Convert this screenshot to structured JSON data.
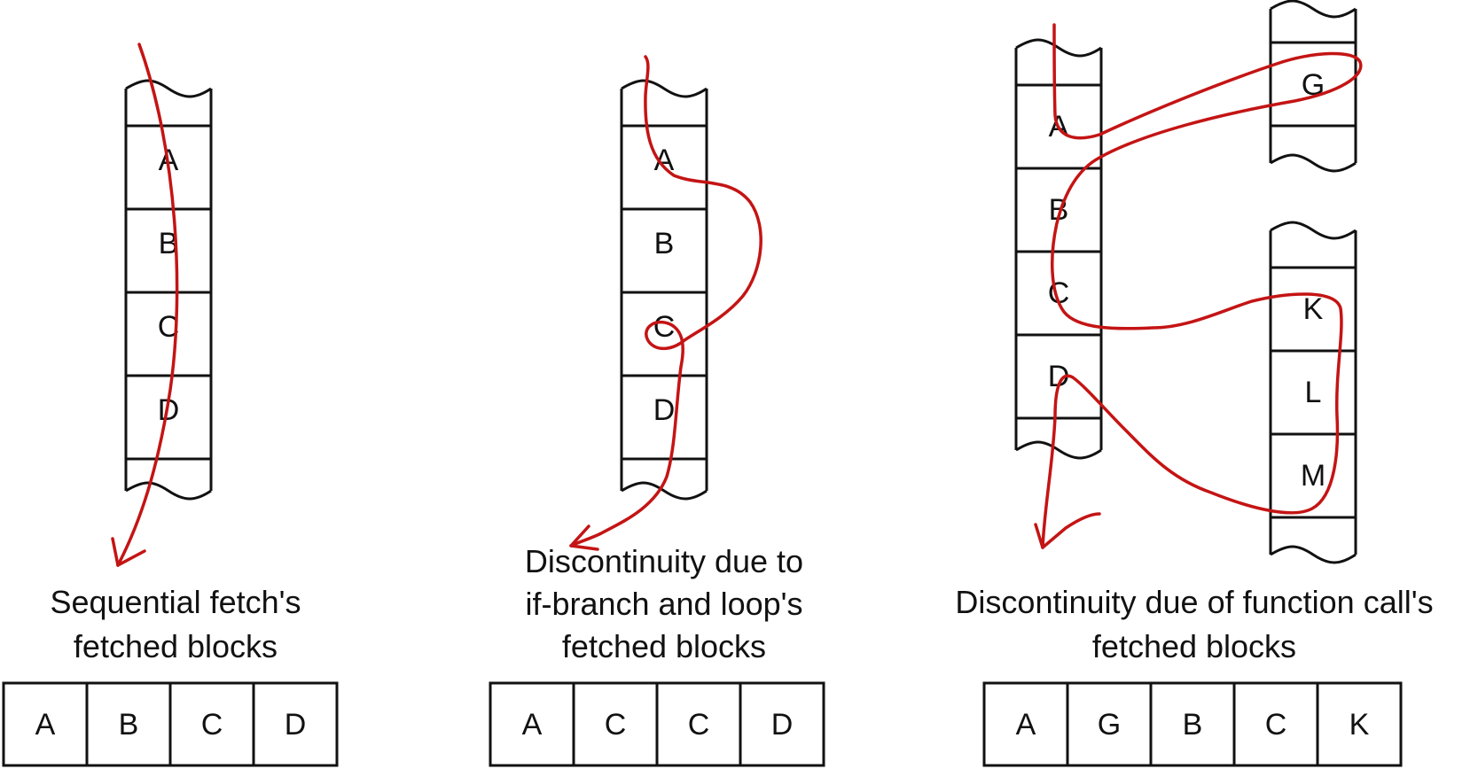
{
  "colors": {
    "ink": "#111111",
    "flow": "#c41414"
  },
  "panels": [
    {
      "memory": {
        "labels": [
          "A",
          "B",
          "C",
          "D"
        ]
      },
      "caption": [
        "Sequential fetch's",
        "fetched blocks"
      ],
      "fetched": [
        "A",
        "B",
        "C",
        "D"
      ]
    },
    {
      "memory": {
        "labels": [
          "A",
          "B",
          "C",
          "D"
        ]
      },
      "caption": [
        "Discontinuity due to",
        "if-branch and loop's",
        "fetched blocks"
      ],
      "fetched": [
        "A",
        "C",
        "C",
        "D"
      ]
    },
    {
      "memory": {
        "labels": [
          "A",
          "B",
          "C",
          "D"
        ]
      },
      "memory_top": {
        "labels": [
          "G"
        ]
      },
      "memory_bottom": {
        "labels": [
          "K",
          "L",
          "M"
        ]
      },
      "caption": [
        "Discontinuity due of function call's",
        "fetched blocks"
      ],
      "fetched": [
        "A",
        "G",
        "B",
        "C",
        "K"
      ]
    }
  ]
}
